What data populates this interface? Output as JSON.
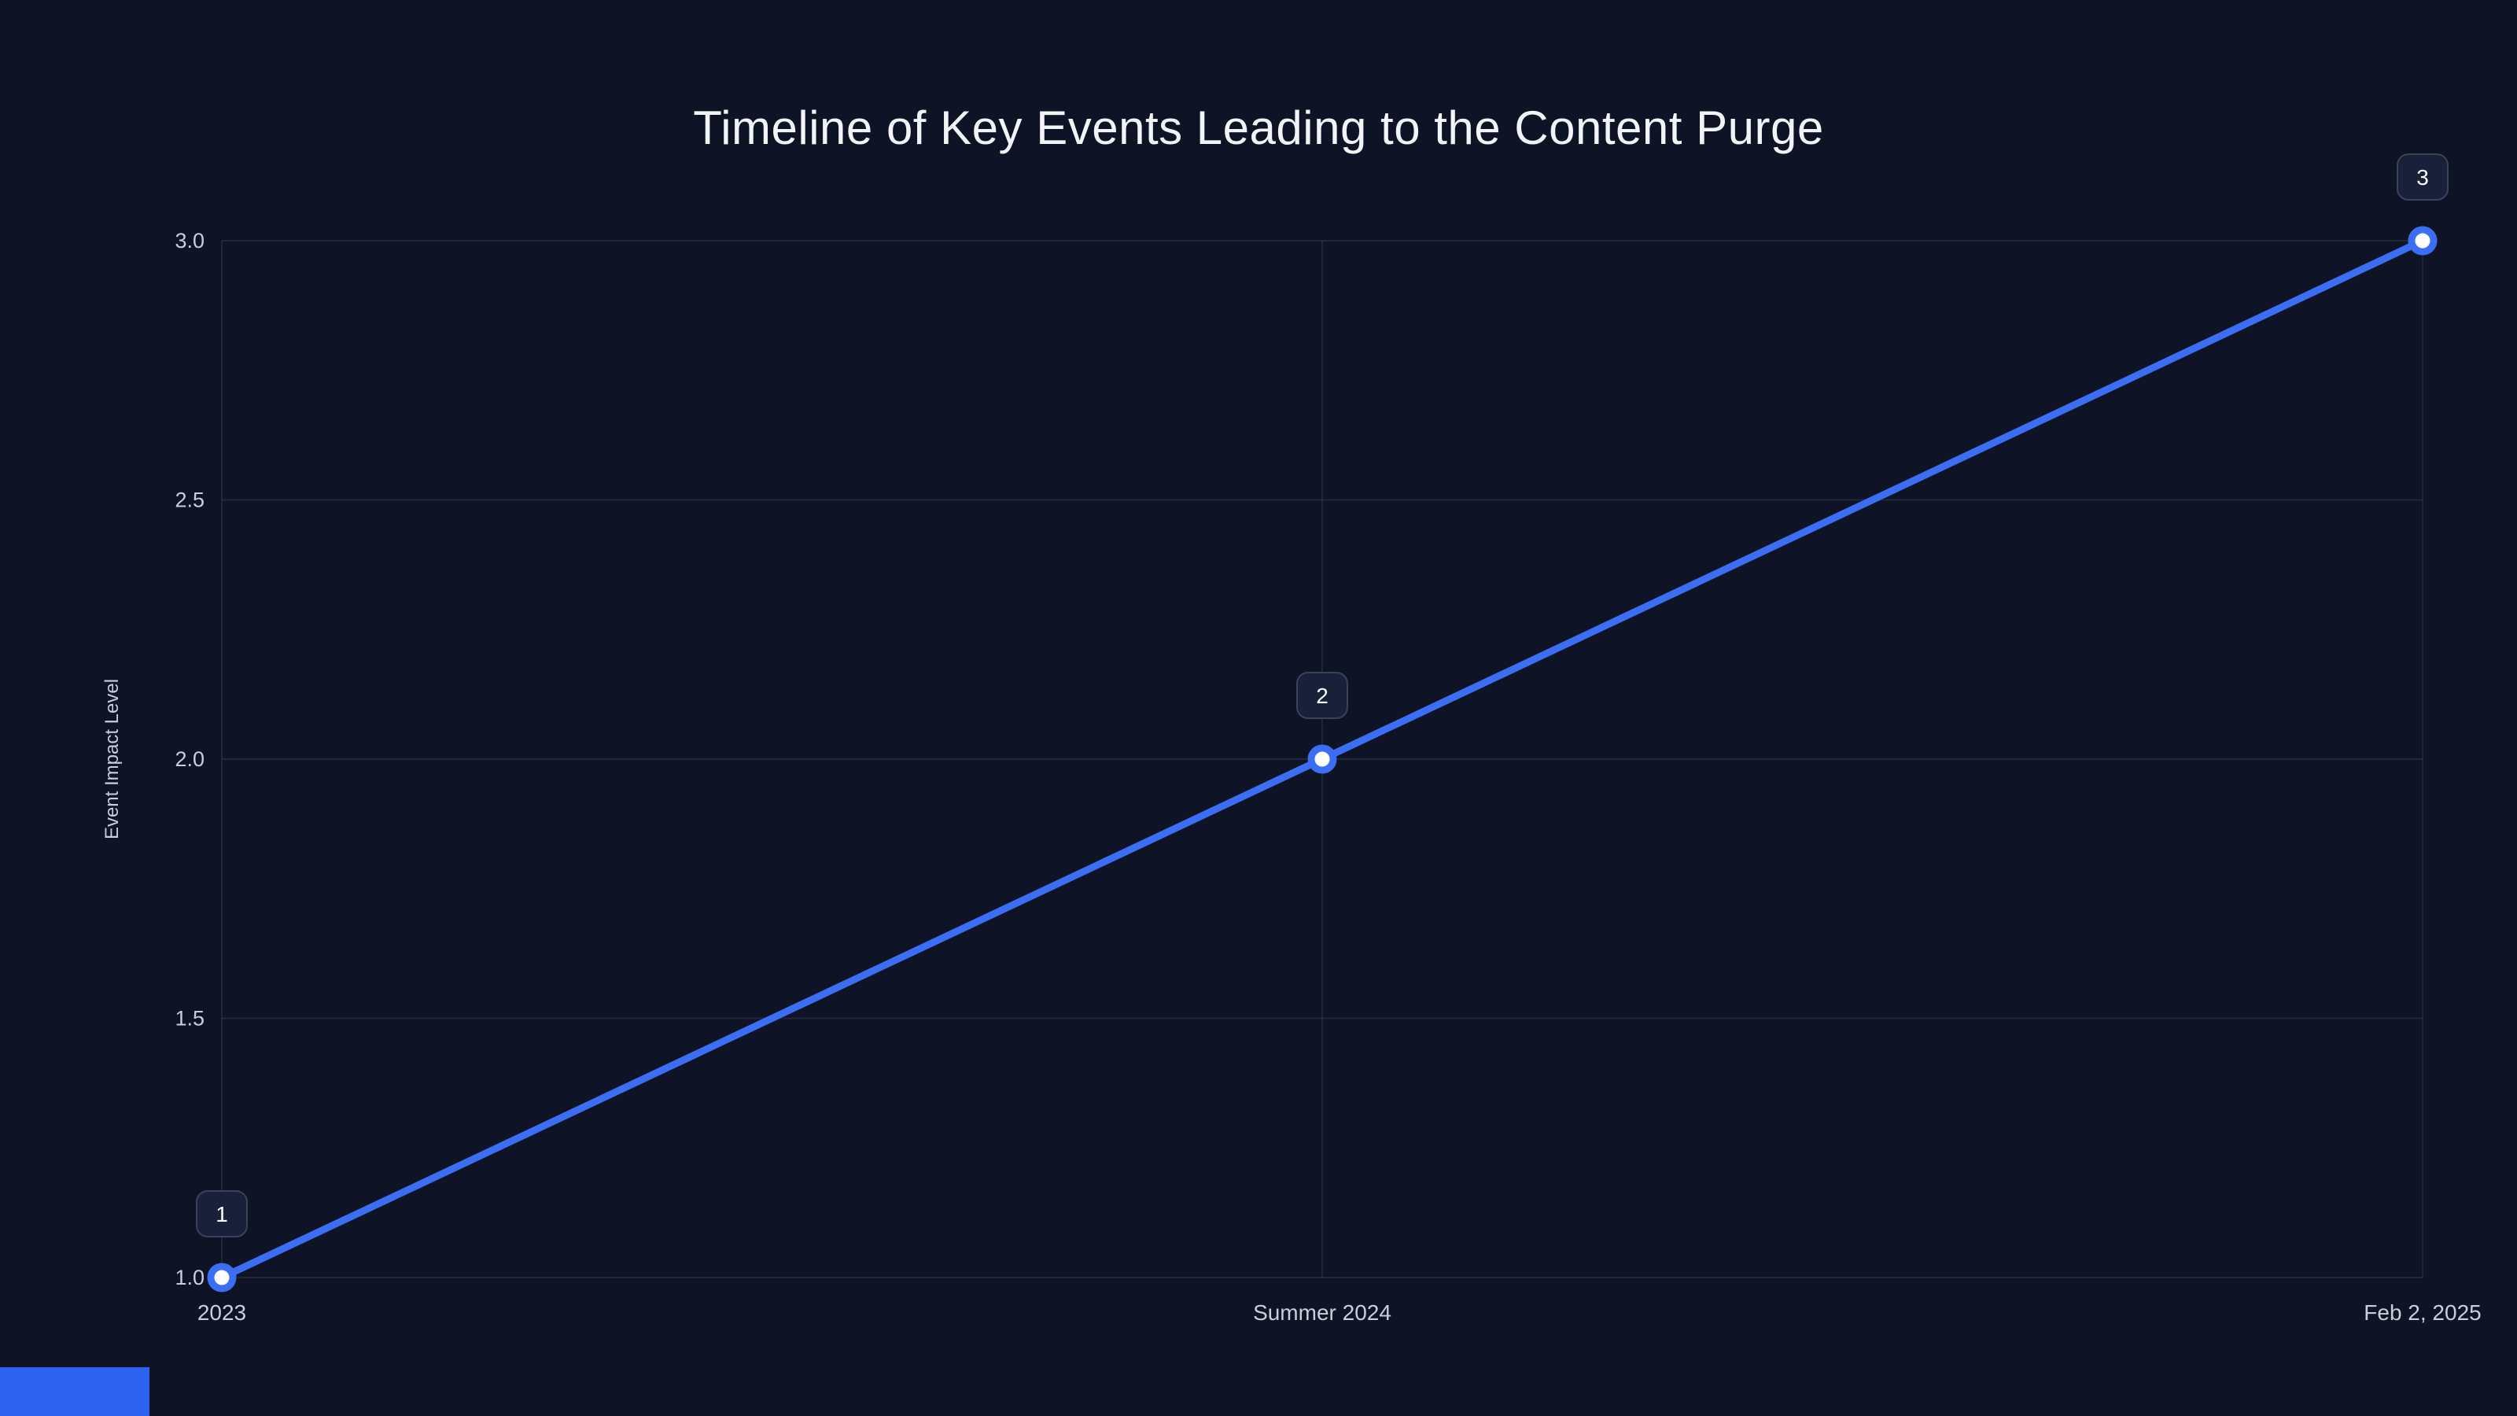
{
  "page": {
    "background": "#0E1426"
  },
  "chart_data": {
    "type": "line",
    "title": "Timeline of Key Events Leading to the Content Purge",
    "xlabel": "",
    "ylabel": "Event Impact Level",
    "x_labels": [
      "2023",
      "Summer 2024",
      "Feb 2, 2025"
    ],
    "series": [
      {
        "name": "Event Impact Level",
        "values": [
          1,
          2,
          3
        ]
      }
    ],
    "point_labels": [
      "1",
      "2",
      "3"
    ],
    "ytick_labels": [
      "1.0",
      "1.5",
      "2.0",
      "2.5",
      "3.0"
    ],
    "ytick_values": [
      1.0,
      1.5,
      2.0,
      2.5,
      3.0
    ],
    "ylim": [
      1.0,
      3.0
    ],
    "grid": true,
    "legend": false,
    "colors": {
      "line": "#3B6EF3",
      "marker_fill": "#FFFFFF",
      "grid": "rgba(255,255,255,0.08)",
      "tick_text": "#C9CEDA",
      "title_text": "#F2F4F8",
      "badge_fill": "#19213A",
      "badge_border": "#3A4358",
      "badge_text": "#FFFFFF"
    }
  },
  "decor": {
    "bottom_left_bar_color": "#2D62F0"
  }
}
